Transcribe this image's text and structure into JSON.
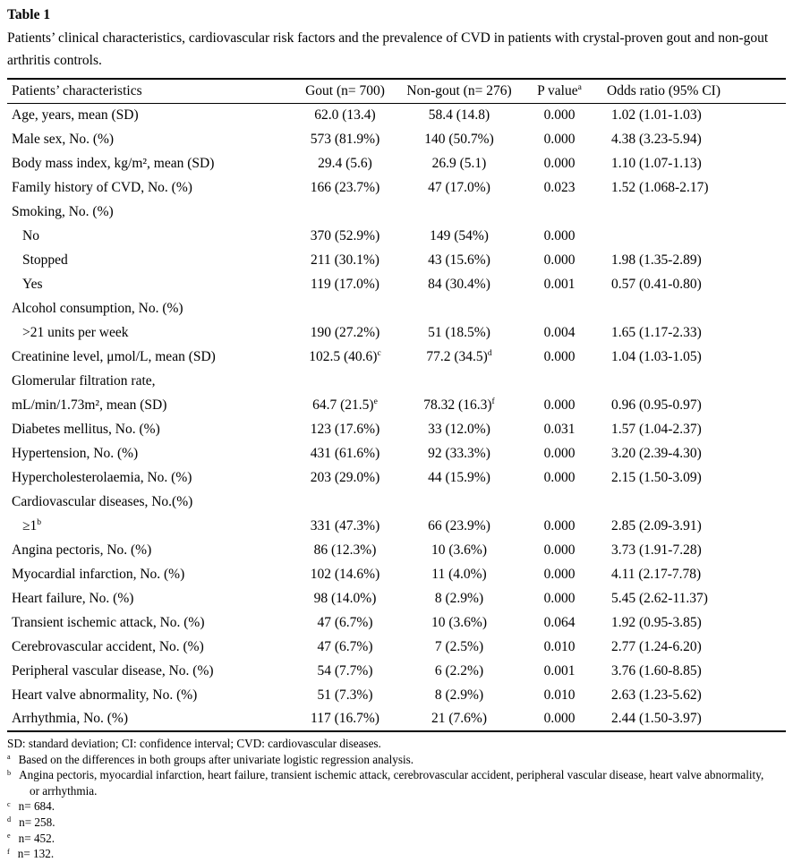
{
  "page": {
    "title": "Table 1",
    "caption": "Patients’ clinical characteristics, cardiovascular risk factors and the prevalence of CVD in patients with crystal-proven gout and non-gout arthritis controls."
  },
  "table": {
    "columns": [
      {
        "label": "Patients’ characteristics",
        "sup": ""
      },
      {
        "label": "Gout (n= 700)",
        "sup": ""
      },
      {
        "label": "Non-gout (n= 276)",
        "sup": ""
      },
      {
        "label": "P value",
        "sup": "a"
      },
      {
        "label": "Odds ratio (95% CI)",
        "sup": ""
      }
    ],
    "rows": [
      {
        "label": "Age, years, mean (SD)",
        "indent": false,
        "gout": "62.0 (13.4)",
        "gout_sup": "",
        "nongout": "58.4 (14.8)",
        "nongout_sup": "",
        "p": "0.000",
        "or": "1.02 (1.01-1.03)"
      },
      {
        "label": "Male sex, No. (%)",
        "indent": false,
        "gout": "573 (81.9%)",
        "gout_sup": "",
        "nongout": "140 (50.7%)",
        "nongout_sup": "",
        "p": "0.000",
        "or": "4.38 (3.23-5.94)"
      },
      {
        "label": "Body mass index, kg/m², mean (SD)",
        "indent": false,
        "gout": "29.4 (5.6)",
        "gout_sup": "",
        "nongout": "26.9 (5.1)",
        "nongout_sup": "",
        "p": "0.000",
        "or": "1.10 (1.07-1.13)"
      },
      {
        "label": "Family history of CVD, No. (%)",
        "indent": false,
        "gout": "166 (23.7%)",
        "gout_sup": "",
        "nongout": "47 (17.0%)",
        "nongout_sup": "",
        "p": "0.023",
        "or": "1.52 (1.068-2.17)"
      },
      {
        "label": "Smoking, No. (%)",
        "indent": false,
        "gout": "",
        "gout_sup": "",
        "nongout": "",
        "nongout_sup": "",
        "p": "",
        "or": ""
      },
      {
        "label": "No",
        "indent": true,
        "gout": "370 (52.9%)",
        "gout_sup": "",
        "nongout": "149 (54%)",
        "nongout_sup": "",
        "p": "0.000",
        "or": ""
      },
      {
        "label": "Stopped",
        "indent": true,
        "gout": "211 (30.1%)",
        "gout_sup": "",
        "nongout": "43 (15.6%)",
        "nongout_sup": "",
        "p": "0.000",
        "or": "1.98 (1.35-2.89)"
      },
      {
        "label": "Yes",
        "indent": true,
        "gout": "119 (17.0%)",
        "gout_sup": "",
        "nongout": "84 (30.4%)",
        "nongout_sup": "",
        "p": "0.001",
        "or": "0.57 (0.41-0.80)"
      },
      {
        "label": "Alcohol consumption, No. (%)",
        "indent": false,
        "gout": "",
        "gout_sup": "",
        "nongout": "",
        "nongout_sup": "",
        "p": "",
        "or": ""
      },
      {
        "label": ">21 units per week",
        "indent": true,
        "gout": "190 (27.2%)",
        "gout_sup": "",
        "nongout": "51 (18.5%)",
        "nongout_sup": "",
        "p": "0.004",
        "or": "1.65 (1.17-2.33)"
      },
      {
        "label": "Creatinine level, μmol/L, mean (SD)",
        "indent": false,
        "gout": "102.5 (40.6)",
        "gout_sup": "c",
        "nongout": "77.2 (34.5)",
        "nongout_sup": "d",
        "p": "0.000",
        "or": "1.04 (1.03-1.05)"
      },
      {
        "label": "Glomerular filtration rate,",
        "indent": false,
        "gout": "",
        "gout_sup": "",
        "nongout": "",
        "nongout_sup": "",
        "p": "",
        "or": ""
      },
      {
        "label": "mL/min/1.73m², mean (SD)",
        "indent": false,
        "gout": "64.7 (21.5)",
        "gout_sup": "e",
        "nongout": "78.32 (16.3)",
        "nongout_sup": "f",
        "p": "0.000",
        "or": "0.96 (0.95-0.97)"
      },
      {
        "label": "Diabetes mellitus, No. (%)",
        "indent": false,
        "gout": "123 (17.6%)",
        "gout_sup": "",
        "nongout": "33 (12.0%)",
        "nongout_sup": "",
        "p": "0.031",
        "or": "1.57 (1.04-2.37)"
      },
      {
        "label": "Hypertension, No. (%)",
        "indent": false,
        "gout": "431 (61.6%)",
        "gout_sup": "",
        "nongout": "92 (33.3%)",
        "nongout_sup": "",
        "p": "0.000",
        "or": "3.20 (2.39-4.30)"
      },
      {
        "label": "Hypercholesterolaemia, No. (%)",
        "indent": false,
        "gout": "203 (29.0%)",
        "gout_sup": "",
        "nongout": "44 (15.9%)",
        "nongout_sup": "",
        "p": "0.000",
        "or": "2.15 (1.50-3.09)"
      },
      {
        "label": "Cardiovascular diseases, No.(%)",
        "indent": false,
        "gout": "",
        "gout_sup": "",
        "nongout": "",
        "nongout_sup": "",
        "p": "",
        "or": ""
      },
      {
        "label": "≥1",
        "label_sup": "b",
        "indent": true,
        "gout": "331 (47.3%)",
        "gout_sup": "",
        "nongout": "66 (23.9%)",
        "nongout_sup": "",
        "p": "0.000",
        "or": "2.85 (2.09-3.91)"
      },
      {
        "label": "Angina pectoris, No. (%)",
        "indent": false,
        "gout": "86 (12.3%)",
        "gout_sup": "",
        "nongout": "10 (3.6%)",
        "nongout_sup": "",
        "p": "0.000",
        "or": "3.73 (1.91-7.28)"
      },
      {
        "label": "Myocardial infarction, No. (%)",
        "indent": false,
        "gout": "102 (14.6%)",
        "gout_sup": "",
        "nongout": "11 (4.0%)",
        "nongout_sup": "",
        "p": "0.000",
        "or": "4.11 (2.17-7.78)"
      },
      {
        "label": "Heart failure, No. (%)",
        "indent": false,
        "gout": "98 (14.0%)",
        "gout_sup": "",
        "nongout": "8 (2.9%)",
        "nongout_sup": "",
        "p": "0.000",
        "or": "5.45 (2.62-11.37)"
      },
      {
        "label": "Transient ischemic attack, No. (%)",
        "indent": false,
        "gout": "47 (6.7%)",
        "gout_sup": "",
        "nongout": "10 (3.6%)",
        "nongout_sup": "",
        "p": "0.064",
        "or": "1.92 (0.95-3.85)"
      },
      {
        "label": "Cerebrovascular accident, No. (%)",
        "indent": false,
        "gout": "47 (6.7%)",
        "gout_sup": "",
        "nongout": "7 (2.5%)",
        "nongout_sup": "",
        "p": "0.010",
        "or": "2.77 (1.24-6.20)"
      },
      {
        "label": "Peripheral vascular disease, No. (%)",
        "indent": false,
        "gout": "54 (7.7%)",
        "gout_sup": "",
        "nongout": "6 (2.2%)",
        "nongout_sup": "",
        "p": "0.001",
        "or": "3.76 (1.60-8.85)"
      },
      {
        "label": "Heart valve abnormality, No. (%)",
        "indent": false,
        "gout": "51 (7.3%)",
        "gout_sup": "",
        "nongout": "8 (2.9%)",
        "nongout_sup": "",
        "p": "0.010",
        "or": "2.63 (1.23-5.62)"
      },
      {
        "label": "Arrhythmia, No. (%)",
        "indent": false,
        "gout": "117 (16.7%)",
        "gout_sup": "",
        "nongout": "21 (7.6%)",
        "nongout_sup": "",
        "p": "0.000",
        "or": "2.44 (1.50-3.97)"
      }
    ]
  },
  "footnotes": [
    {
      "sup": "",
      "text": "SD: standard deviation; CI: confidence interval; CVD: cardiovascular diseases."
    },
    {
      "sup": "a",
      "text": "Based on the differences in both groups after univariate logistic regression analysis."
    },
    {
      "sup": "b",
      "text": "Angina pectoris, myocardial infarction, heart failure, transient ischemic attack, cerebrovascular accident, peripheral vascular disease, heart valve abnormality, or arrhythmia."
    },
    {
      "sup": "c",
      "text": "n= 684."
    },
    {
      "sup": "d",
      "text": "n= 258."
    },
    {
      "sup": "e",
      "text": "n= 452."
    },
    {
      "sup": "f",
      "text": "n= 132."
    }
  ]
}
